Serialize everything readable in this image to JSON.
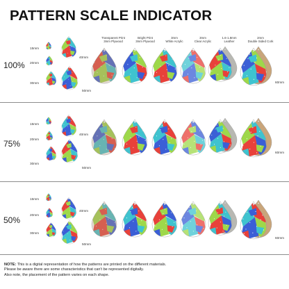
{
  "title": "PATTERN SCALE INDICATOR",
  "materials": [
    {
      "name": "Transparent Print",
      "sub": "3mm Plywood"
    },
    {
      "name": "Bright Print",
      "sub": "3mm Plywood"
    },
    {
      "name": "3mm",
      "sub": "White Acrylic"
    },
    {
      "name": "3mm",
      "sub": "Clear Acrylic"
    },
    {
      "name": "1.6-1.8mm",
      "sub": "Leather"
    },
    {
      "name": "2mm",
      "sub": "Double Sided Cork"
    }
  ],
  "size_labels": {
    "s15": "15mm",
    "s20": "20mm",
    "s30": "30mm",
    "s40": "40mm",
    "s50": "50mm",
    "s60": "60mm"
  },
  "sections": [
    {
      "percent": "100%"
    },
    {
      "percent": "75%"
    },
    {
      "percent": "50%"
    }
  ],
  "note": {
    "label": "NOTE:",
    "line1": " This is a digital representation of how the patterns are printed on the different materials.",
    "line2": "Please be aware there are some characteristics that can't be represented digitally.",
    "line3": "Also note, the placement of the pattern varies on each shape."
  },
  "colors": {
    "red": "#e8413a",
    "blue": "#3b5fd6",
    "lime": "#9ed84a",
    "aqua": "#3fc3cf",
    "leather": "#b8b8b2",
    "cork": "#c9a57a",
    "wood": "#b4977a"
  }
}
